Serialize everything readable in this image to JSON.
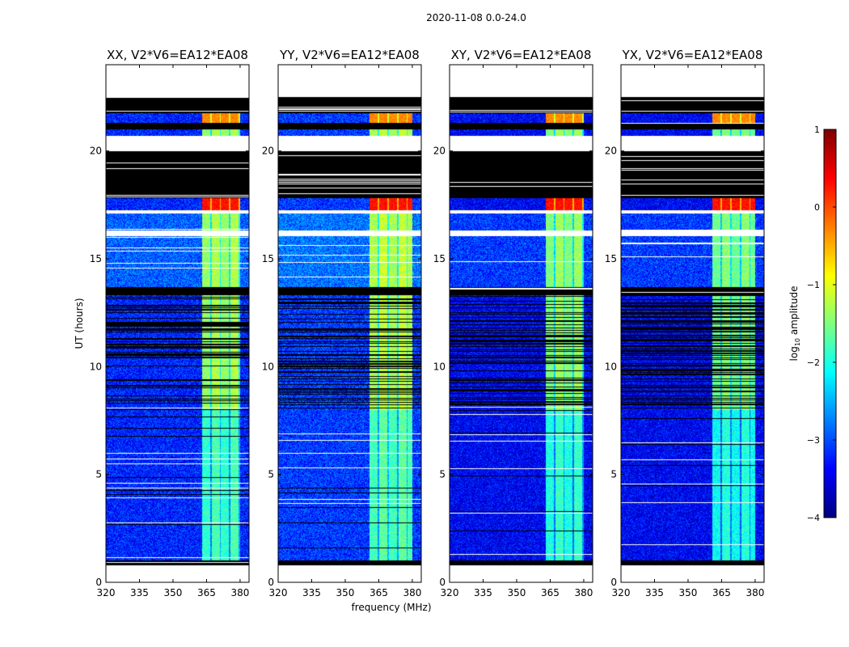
{
  "chart_data": {
    "type": "heatmap",
    "title": "2020-11-08 0.0-24.0",
    "xlabel": "frequency (MHz)",
    "ylabel": "UT (hours)",
    "xlim": [
      320,
      384
    ],
    "ylim": [
      0,
      24
    ],
    "xticks": [
      320,
      335,
      350,
      365,
      380
    ],
    "yticks": [
      0,
      5,
      10,
      15,
      20
    ],
    "panels": [
      {
        "title": "XX, V2*V6=EA12*EA08",
        "rfi_band_mhz": [
          363,
          380
        ],
        "band_level": -1.4,
        "noise_level": -3.2
      },
      {
        "title": "YY, V2*V6=EA12*EA08",
        "rfi_band_mhz": [
          361,
          380
        ],
        "band_level": -1.3,
        "noise_level": -3.1
      },
      {
        "title": "XY, V2*V6=EA12*EA08",
        "rfi_band_mhz": [
          363,
          380
        ],
        "band_level": -1.5,
        "noise_level": -3.4
      },
      {
        "title": "YX, V2*V6=EA12*EA08",
        "rfi_band_mhz": [
          361,
          380
        ],
        "band_level": -1.6,
        "noise_level": -3.4
      }
    ],
    "no_data_hours": [
      [
        22.5,
        24
      ],
      [
        20.0,
        20.7
      ],
      [
        16.05,
        16.3
      ],
      [
        17.1,
        17.25
      ],
      [
        0,
        0.8
      ]
    ],
    "flagged_hours": [
      [
        21.75,
        22.5
      ],
      [
        21.0,
        21.3
      ],
      [
        17.8,
        20.0
      ],
      [
        13.3,
        13.7
      ],
      [
        0.8,
        1.0
      ]
    ],
    "bright_segments": [
      {
        "hours": [
          17.25,
          17.8
        ],
        "level": 0.3
      },
      {
        "hours": [
          21.3,
          21.75
        ],
        "level": -0.3
      }
    ],
    "colorbar": {
      "range": [
        -4,
        1
      ],
      "ticks": [
        "1",
        "0",
        "−1",
        "−2",
        "−3",
        "−4"
      ],
      "tick_values": [
        1,
        0,
        -1,
        -2,
        -3,
        -4
      ],
      "label_base": "log",
      "label_sub": "10",
      "label_rest": " amplitude",
      "colormap": "jet"
    }
  }
}
